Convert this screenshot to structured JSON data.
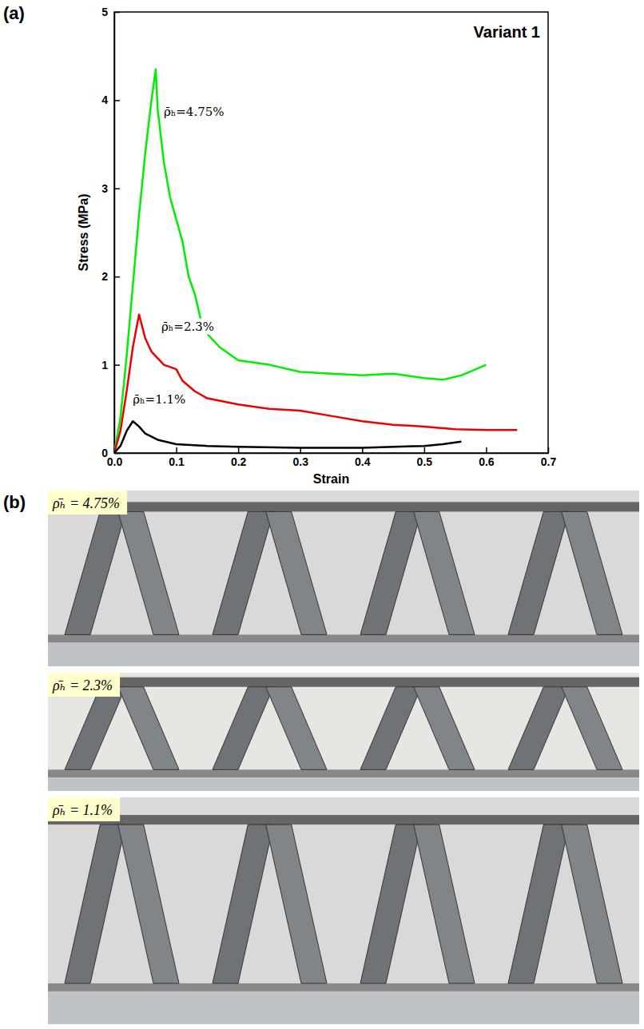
{
  "panel_labels": [
    "(a)",
    "(b)"
  ],
  "chart_data": {
    "type": "line",
    "title": "Variant 1",
    "x_label": "Strain",
    "y_label": "Stress (MPa)",
    "xlim": [
      0,
      0.7
    ],
    "ylim": [
      0,
      5
    ],
    "xticks": [
      {
        "value": 0,
        "label": "0.0"
      },
      0.1,
      0.2,
      0.3,
      0.4,
      0.5,
      0.6,
      0.7
    ],
    "yticks": [
      0,
      1,
      2,
      3,
      4,
      5
    ],
    "grid": false,
    "series": [
      {
        "name": "ρ̄ₕ=4.75%",
        "color": "#00ee00",
        "x": [
          0,
          0.01,
          0.02,
          0.03,
          0.04,
          0.05,
          0.06,
          0.067,
          0.07,
          0.075,
          0.08,
          0.09,
          0.1,
          0.11,
          0.12,
          0.13,
          0.14,
          0.15,
          0.17,
          0.2,
          0.25,
          0.3,
          0.35,
          0.4,
          0.45,
          0.5,
          0.53,
          0.56,
          0.6
        ],
        "values": [
          0,
          0.4,
          1.1,
          1.9,
          2.7,
          3.4,
          4.0,
          4.35,
          3.9,
          3.6,
          3.3,
          2.9,
          2.65,
          2.4,
          2.0,
          1.8,
          1.5,
          1.35,
          1.2,
          1.05,
          1.0,
          0.92,
          0.9,
          0.88,
          0.9,
          0.85,
          0.83,
          0.88,
          1.0
        ]
      },
      {
        "name": "ρ̄ₕ=2.3%",
        "color": "#ee0000",
        "x": [
          0,
          0.01,
          0.02,
          0.03,
          0.04,
          0.05,
          0.06,
          0.08,
          0.1,
          0.11,
          0.13,
          0.15,
          0.2,
          0.25,
          0.3,
          0.35,
          0.4,
          0.45,
          0.5,
          0.55,
          0.6,
          0.65
        ],
        "values": [
          0,
          0.25,
          0.7,
          1.2,
          1.57,
          1.3,
          1.15,
          1.0,
          0.95,
          0.82,
          0.7,
          0.62,
          0.55,
          0.5,
          0.48,
          0.42,
          0.36,
          0.32,
          0.3,
          0.27,
          0.26,
          0.26
        ]
      },
      {
        "name": "ρ̄ₕ=1.1%",
        "color": "#000000",
        "x": [
          0,
          0.01,
          0.02,
          0.03,
          0.04,
          0.05,
          0.07,
          0.1,
          0.15,
          0.2,
          0.3,
          0.4,
          0.5,
          0.53,
          0.56
        ],
        "values": [
          0,
          0.08,
          0.25,
          0.36,
          0.3,
          0.22,
          0.15,
          0.1,
          0.08,
          0.07,
          0.06,
          0.06,
          0.08,
          0.1,
          0.13
        ]
      }
    ]
  },
  "photos": [
    {
      "label": "ρ̄ₕ = 4.75%"
    },
    {
      "label": "ρ̄ₕ = 2.3%"
    },
    {
      "label": "ρ̄ₕ = 1.1%"
    }
  ]
}
